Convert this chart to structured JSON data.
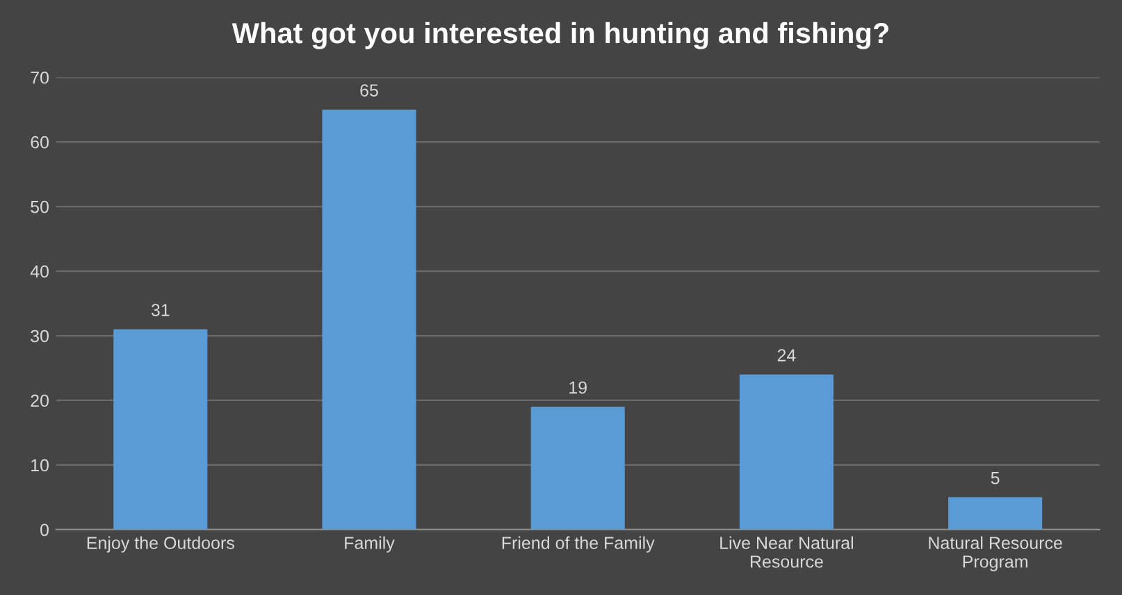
{
  "chart_data": {
    "type": "bar",
    "title": "What got you interested in hunting and fishing?",
    "categories": [
      "Enjoy the Outdoors",
      "Family",
      "Friend of the Family",
      "Live Near Natural\nResource",
      "Natural Resource\nProgram"
    ],
    "values": [
      31,
      65,
      19,
      24,
      5
    ],
    "color": "#5b9bd5",
    "ylim": [
      0,
      70
    ],
    "yticks": [
      0,
      10,
      20,
      30,
      40,
      50,
      60,
      70
    ],
    "grid": "y",
    "data_labels": true
  }
}
